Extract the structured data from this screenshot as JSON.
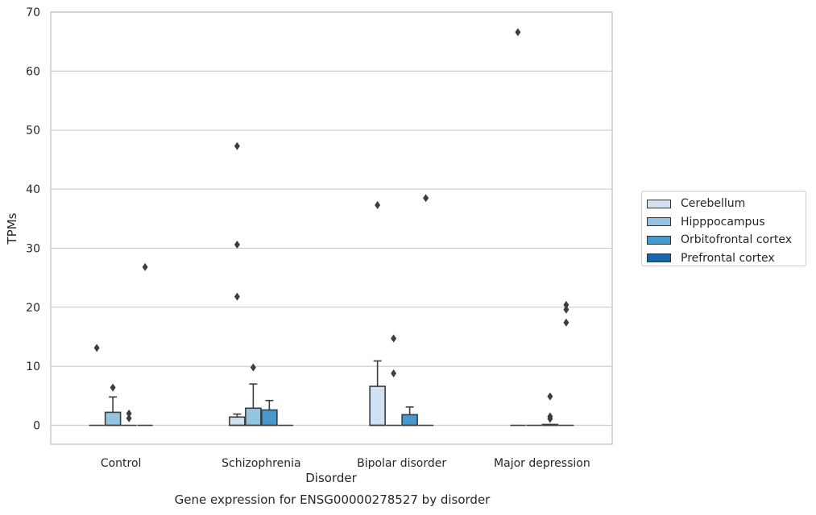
{
  "chart_data": {
    "type": "box",
    "title": "",
    "caption": "Gene expression for ENSG00000278527 by disorder",
    "xlabel": "Disorder",
    "ylabel": "TPMs",
    "ylim": [
      -3.2,
      70
    ],
    "yticks": [
      0,
      10,
      20,
      30,
      40,
      50,
      60,
      70
    ],
    "categories": [
      "Control",
      "Schizophrenia",
      "Bipolar disorder",
      "Major depression"
    ],
    "grid": "horizontal",
    "legend_position": "right",
    "series": [
      {
        "name": "Cerebellum",
        "color": "#d0e1f2",
        "boxes": [
          {
            "q1": 0,
            "median": 0,
            "q3": 0,
            "whisker_low": 0,
            "whisker_high": 0,
            "outliers": [
              13.1
            ]
          },
          {
            "q1": 0,
            "median": 0,
            "q3": 1.4,
            "whisker_low": 0,
            "whisker_high": 1.9,
            "outliers": [
              47.3,
              30.6,
              21.8
            ]
          },
          {
            "q1": 0,
            "median": 0,
            "q3": 6.6,
            "whisker_low": 0,
            "whisker_high": 10.9,
            "outliers": [
              37.3
            ]
          },
          {
            "q1": 0,
            "median": 0,
            "q3": 0,
            "whisker_low": 0,
            "whisker_high": 0,
            "outliers": [
              66.6
            ]
          }
        ]
      },
      {
        "name": "Hipppocampus",
        "color": "#94c4df",
        "boxes": [
          {
            "q1": 0,
            "median": 0,
            "q3": 2.2,
            "whisker_low": 0,
            "whisker_high": 4.8,
            "outliers": [
              6.4
            ]
          },
          {
            "q1": 0,
            "median": 0,
            "q3": 2.9,
            "whisker_low": 0,
            "whisker_high": 7.0,
            "outliers": [
              9.8
            ]
          },
          {
            "q1": 0,
            "median": 0,
            "q3": 0,
            "whisker_low": 0,
            "whisker_high": 0,
            "outliers": [
              14.7,
              8.8
            ]
          },
          {
            "q1": 0,
            "median": 0,
            "q3": 0,
            "whisker_low": 0,
            "whisker_high": 0,
            "outliers": []
          }
        ]
      },
      {
        "name": "Orbitofrontal cortex",
        "color": "#4a98c9",
        "boxes": [
          {
            "q1": 0,
            "median": 0,
            "q3": 0,
            "whisker_low": 0,
            "whisker_high": 0,
            "outliers": [
              2.0,
              1.2
            ]
          },
          {
            "q1": 0,
            "median": 0,
            "q3": 2.6,
            "whisker_low": 0,
            "whisker_high": 4.2,
            "outliers": []
          },
          {
            "q1": 0,
            "median": 0,
            "q3": 1.8,
            "whisker_low": 0,
            "whisker_high": 3.1,
            "outliers": []
          },
          {
            "q1": 0,
            "median": 0,
            "q3": 0.15,
            "whisker_low": 0,
            "whisker_high": 0.15,
            "outliers": [
              4.9,
              1.5,
              1.1
            ]
          }
        ]
      },
      {
        "name": "Prefrontal cortex",
        "color": "#1764ab",
        "boxes": [
          {
            "q1": 0,
            "median": 0,
            "q3": 0,
            "whisker_low": 0,
            "whisker_high": 0,
            "outliers": [
              26.8
            ]
          },
          {
            "q1": 0,
            "median": 0,
            "q3": 0,
            "whisker_low": 0,
            "whisker_high": 0,
            "outliers": []
          },
          {
            "q1": 0,
            "median": 0,
            "q3": 0,
            "whisker_low": 0,
            "whisker_high": 0,
            "outliers": [
              38.5
            ]
          },
          {
            "q1": 0,
            "median": 0,
            "q3": 0,
            "whisker_low": 0,
            "whisker_high": 0,
            "outliers": [
              20.4,
              19.6,
              17.4
            ]
          }
        ]
      }
    ]
  }
}
